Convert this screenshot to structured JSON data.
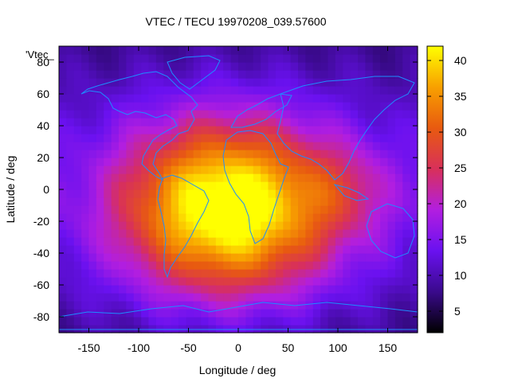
{
  "chart_data": {
    "type": "heatmap",
    "title": "VTEC / TECU 19970208_039.57600",
    "xlabel": "Longitude / deg",
    "ylabel": "Latitude / deg",
    "series_label": "'Vtec_",
    "xlim": [
      -180,
      180
    ],
    "ylim": [
      -90,
      90
    ],
    "x_ticks": [
      -150,
      -100,
      -50,
      0,
      50,
      100,
      150
    ],
    "y_ticks": [
      -80,
      -60,
      -40,
      -20,
      0,
      20,
      40,
      60,
      80
    ],
    "colorbar": {
      "range": [
        2,
        42
      ],
      "ticks": [
        5,
        10,
        15,
        20,
        25,
        30,
        35,
        40
      ]
    },
    "colormap": [
      "#000000",
      "#3a0a8c",
      "#6a11f0",
      "#b21ee0",
      "#d8305a",
      "#e85a10",
      "#f8a000",
      "#ffff00"
    ],
    "grid": false,
    "peak": {
      "lon": -10,
      "lat": -12,
      "value": 42
    }
  }
}
